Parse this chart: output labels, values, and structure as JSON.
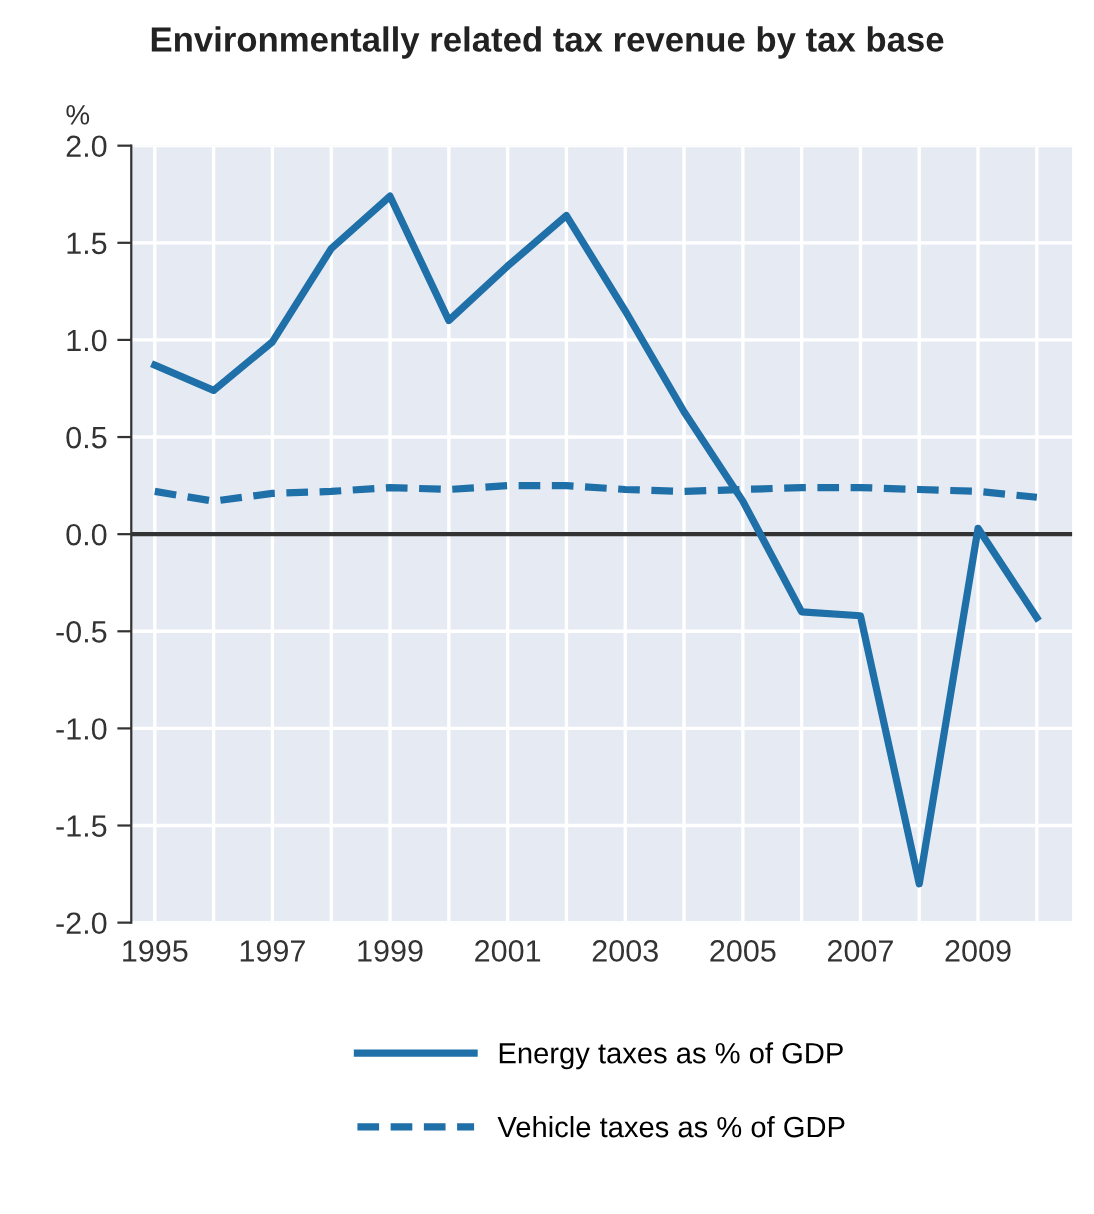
{
  "chart_data": {
    "type": "line",
    "title": "Environmentally related tax revenue by tax base",
    "ylabel": "%",
    "x": [
      1995,
      1996,
      1997,
      1998,
      1999,
      2000,
      2001,
      2002,
      2003,
      2004,
      2005,
      2006,
      2007,
      2008,
      2009,
      2010
    ],
    "series": [
      {
        "name": "Energy taxes as % of GDP",
        "color": "#1f6fa8",
        "line_style": "solid",
        "values": [
          0.87,
          0.74,
          0.99,
          1.47,
          1.74,
          1.1,
          1.38,
          1.64,
          1.15,
          0.63,
          0.17,
          -0.4,
          -0.42,
          -1.8,
          0.03,
          -0.43
        ]
      },
      {
        "name": "Vehicle taxes as % of GDP",
        "color": "#1f6fa8",
        "line_style": "dashed",
        "values": [
          0.22,
          0.17,
          0.21,
          0.22,
          0.24,
          0.23,
          0.25,
          0.25,
          0.23,
          0.22,
          0.23,
          0.24,
          0.24,
          0.23,
          0.22,
          0.19
        ]
      }
    ],
    "xlim": [
      1994.6,
      2010.6
    ],
    "xticks": [
      1995,
      {
        "value": 1996,
        "label": null
      },
      1997,
      {
        "value": 1998,
        "label": null
      },
      1999,
      {
        "value": 2000,
        "label": null
      },
      2001,
      {
        "value": 2002,
        "label": null
      },
      2003,
      {
        "value": 2004,
        "label": null
      },
      2005,
      {
        "value": 2006,
        "label": null
      },
      2007,
      {
        "value": 2008,
        "label": null
      },
      2009,
      {
        "value": 2010,
        "label": null
      }
    ],
    "ylim": [
      -2.0,
      2.0
    ],
    "yticks": [
      {
        "value": 2.0,
        "label": "2.0"
      },
      {
        "value": 1.5,
        "label": "1.5"
      },
      {
        "value": 1.0,
        "label": "1.0"
      },
      {
        "value": 0.5,
        "label": "0.5"
      },
      {
        "value": 0.0,
        "label": "0.0"
      },
      {
        "value": -0.5,
        "label": "-0.5"
      },
      {
        "value": -1.0,
        "label": "-1.0"
      },
      {
        "value": -1.5,
        "label": "-1.5"
      },
      {
        "value": -2.0,
        "label": "-2.0"
      }
    ],
    "ref_lines": [
      {
        "axis": "y",
        "value": 0,
        "color": "#333333"
      }
    ],
    "grid": true,
    "legend": "bottom"
  }
}
